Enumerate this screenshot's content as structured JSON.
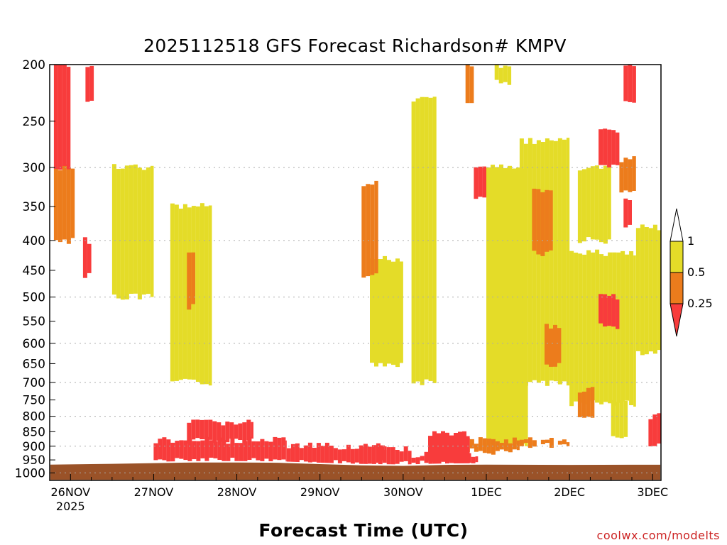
{
  "header": {
    "title": "2025112518 GFS Forecast Richardson# KMPV"
  },
  "footer": {
    "xlabel": "Forecast Time (UTC)",
    "credit": "coolwx.com/modelts"
  },
  "colors": {
    "ri_lt_025": "#f83c3c",
    "ri_025_05": "#ec7c1c",
    "ri_05_1": "#e4dc28",
    "ground": "#9a5228",
    "frame": "#000000",
    "grid": "#aaaaaa"
  },
  "chart_data": {
    "type": "heatmap",
    "title": "2025112518 GFS Forecast Richardson# KMPV",
    "xlabel": "Forecast Time (UTC)",
    "ylabel": "",
    "x_ticks": [
      "26NOV",
      "27NOV",
      "28NOV",
      "29NOV",
      "30NOV",
      "1DEC",
      "2DEC",
      "3DEC"
    ],
    "x_year_label": "2025",
    "x_range_days": [
      -0.25,
      7.1
    ],
    "y_ticks": [
      200,
      250,
      300,
      350,
      400,
      450,
      500,
      550,
      600,
      650,
      700,
      750,
      800,
      850,
      900,
      950,
      1000
    ],
    "y_range": [
      200,
      1030
    ],
    "y_scale": "log-pressure",
    "grid_levels": [
      300,
      400,
      500,
      600,
      700,
      800,
      900,
      1000
    ],
    "grid": true,
    "legend": {
      "placement": "right",
      "labels": [
        "1",
        "0.5",
        "0.25"
      ],
      "bins": [
        {
          "range": "0.5 - 1",
          "color": "#e4dc28"
        },
        {
          "range": "0.25 - 0.5",
          "color": "#ec7c1c"
        },
        {
          "range": "< 0.25",
          "color": "#f83c3c"
        }
      ]
    },
    "ground_pressure_hpa": [
      [
        -0.25,
        965
      ],
      [
        0.5,
        962
      ],
      [
        1.5,
        957
      ],
      [
        2.0,
        957
      ],
      [
        2.5,
        958
      ],
      [
        3.0,
        963
      ],
      [
        3.5,
        968
      ],
      [
        4.0,
        970
      ],
      [
        4.5,
        966
      ],
      [
        5.0,
        965
      ],
      [
        6.0,
        966
      ],
      [
        7.1,
        965
      ]
    ],
    "series": [
      {
        "name": "< 0.25",
        "regions": [
          {
            "t": [
              1.0,
              2.6
            ],
            "p": [
              880,
              955
            ]
          },
          {
            "t": [
              1.4,
              2.2
            ],
            "p": [
              820,
              880
            ]
          },
          {
            "t": [
              2.6,
              3.8
            ],
            "p": [
              900,
              962
            ]
          },
          {
            "t": [
              3.7,
              4.1
            ],
            "p": [
              910,
              968
            ]
          },
          {
            "t": [
              4.3,
              4.8
            ],
            "p": [
              860,
              966
            ]
          },
          {
            "t": [
              4.1,
              4.9
            ],
            "p": [
              930,
              966
            ]
          },
          {
            "t": [
              -0.2,
              0.0
            ],
            "p": [
              200,
              300
            ]
          },
          {
            "t": [
              0.18,
              0.28
            ],
            "p": [
              200,
              230
            ]
          },
          {
            "t": [
              0.15,
              0.25
            ],
            "p": [
              400,
              460
            ]
          },
          {
            "t": [
              4.85,
              5.0
            ],
            "p": [
              300,
              340
            ]
          },
          {
            "t": [
              6.35,
              6.6
            ],
            "p": [
              260,
              300
            ]
          },
          {
            "t": [
              6.35,
              6.6
            ],
            "p": [
              500,
              560
            ]
          },
          {
            "t": [
              6.65,
              6.75
            ],
            "p": [
              340,
              380
            ]
          },
          {
            "t": [
              6.95,
              7.1
            ],
            "p": [
              800,
              900
            ]
          },
          {
            "t": [
              6.65,
              6.8
            ],
            "p": [
              200,
              230
            ]
          }
        ]
      },
      {
        "name": "0.25 - 0.5",
        "regions": [
          {
            "t": [
              -0.2,
              0.05
            ],
            "p": [
              300,
              400
            ]
          },
          {
            "t": [
              4.7,
              5.4
            ],
            "p": [
              880,
              920
            ]
          },
          {
            "t": [
              5.4,
              6.0
            ],
            "p": [
              880,
              900
            ]
          },
          {
            "t": [
              5.7,
              5.9
            ],
            "p": [
              560,
              650
            ]
          },
          {
            "t": [
              5.55,
              5.8
            ],
            "p": [
              330,
              420
            ]
          },
          {
            "t": [
              6.1,
              6.3
            ],
            "p": [
              720,
              800
            ]
          },
          {
            "t": [
              6.6,
              6.8
            ],
            "p": [
              290,
              330
            ]
          },
          {
            "t": [
              3.5,
              3.7
            ],
            "p": [
              320,
              460
            ]
          },
          {
            "t": [
              4.75,
              4.85
            ],
            "p": [
              200,
              230
            ]
          },
          {
            "t": [
              1.4,
              1.5
            ],
            "p": [
              420,
              520
            ]
          }
        ]
      },
      {
        "name": "0.5 - 1",
        "regions": [
          {
            "t": [
              5.0,
              5.5
            ],
            "p": [
              300,
              900
            ]
          },
          {
            "t": [
              5.4,
              6.0
            ],
            "p": [
              270,
              700
            ]
          },
          {
            "t": [
              6.0,
              6.8
            ],
            "p": [
              420,
              760
            ]
          },
          {
            "t": [
              6.1,
              6.5
            ],
            "p": [
              300,
              400
            ]
          },
          {
            "t": [
              6.8,
              7.1
            ],
            "p": [
              380,
              620
            ]
          },
          {
            "t": [
              0.5,
              1.0
            ],
            "p": [
              300,
              500
            ]
          },
          {
            "t": [
              1.2,
              1.7
            ],
            "p": [
              350,
              700
            ]
          },
          {
            "t": [
              4.1,
              4.4
            ],
            "p": [
              230,
              700
            ]
          },
          {
            "t": [
              3.6,
              4.0
            ],
            "p": [
              430,
              650
            ]
          },
          {
            "t": [
              6.5,
              6.7
            ],
            "p": [
              750,
              860
            ]
          },
          {
            "t": [
              5.1,
              5.3
            ],
            "p": [
              200,
              215
            ]
          }
        ]
      }
    ]
  }
}
